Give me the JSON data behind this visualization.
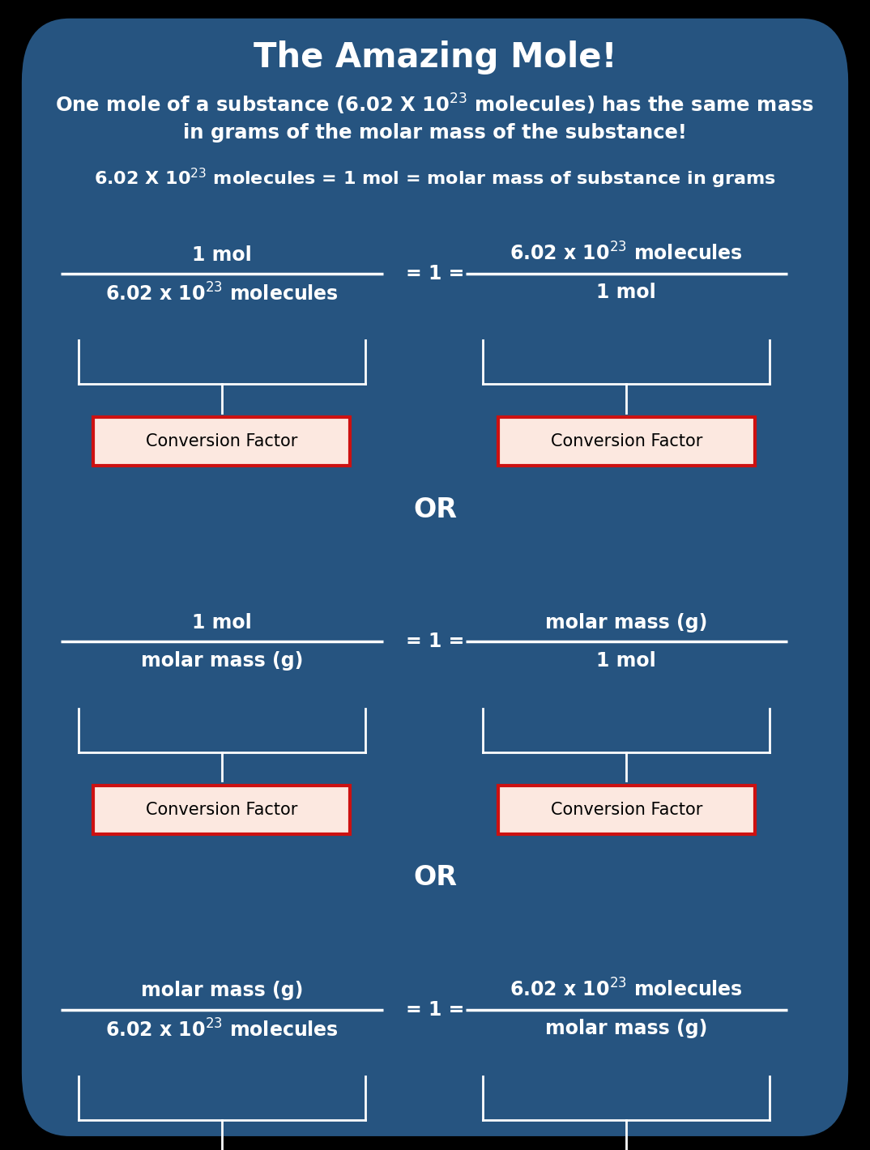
{
  "bg_color": "#265480",
  "text_color": "#ffffff",
  "box_bg": "#fce8e0",
  "box_border": "#cc1111",
  "title": "The Amazing Mole!",
  "or_text": "OR",
  "cf_text": "Conversion Factor",
  "fractions": [
    {
      "left_num": "1 mol",
      "left_den": "6.02 x 10$^{23}$ molecules",
      "right_num": "6.02 x 10$^{23}$ molecules",
      "right_den": "1 mol"
    },
    {
      "left_num": "1 mol",
      "left_den": "molar mass (g)",
      "right_num": "molar mass (g)",
      "right_den": "1 mol"
    },
    {
      "left_num": "molar mass (g)",
      "left_den": "6.02 x 10$^{23}$ molecules",
      "right_num": "6.02 x 10$^{23}$ molecules",
      "right_den": "molar mass (g)"
    }
  ],
  "figsize": [
    10.74,
    14.2
  ],
  "dpi": 100
}
